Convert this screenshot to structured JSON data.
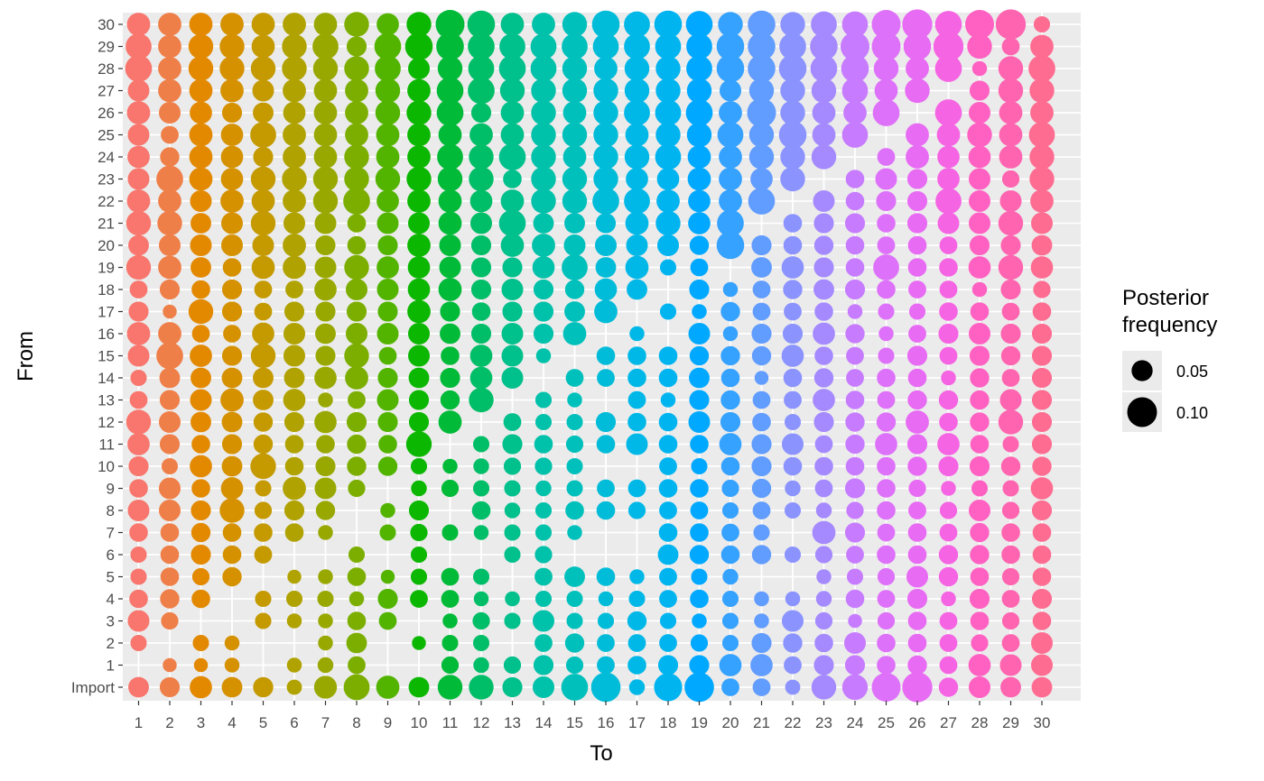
{
  "chart_data": {
    "type": "scatter",
    "encoding": "bubble grid: point size = posterior frequency; color = To column",
    "xlabel": "To",
    "ylabel": "From",
    "x_categories": [
      "1",
      "2",
      "3",
      "4",
      "5",
      "6",
      "7",
      "8",
      "9",
      "10",
      "11",
      "12",
      "13",
      "14",
      "15",
      "16",
      "17",
      "18",
      "19",
      "20",
      "21",
      "22",
      "23",
      "24",
      "25",
      "26",
      "27",
      "28",
      "29",
      "30"
    ],
    "y_categories": [
      "Import",
      "1",
      "2",
      "3",
      "4",
      "5",
      "6",
      "7",
      "8",
      "9",
      "10",
      "11",
      "12",
      "13",
      "14",
      "15",
      "16",
      "17",
      "18",
      "19",
      "20",
      "21",
      "22",
      "23",
      "24",
      "25",
      "26",
      "27",
      "28",
      "29",
      "30"
    ],
    "legend": {
      "title_line1": "Posterior",
      "title_line2": "frequency",
      "placement": "right",
      "entries": [
        {
          "label": "0.05",
          "value": 0.05
        },
        {
          "label": "0.10",
          "value": 0.1
        }
      ]
    },
    "column_colors": [
      "#F8766D",
      "#EF7F48",
      "#E38900",
      "#D59100",
      "#C49A00",
      "#B0A200",
      "#99A800",
      "#7CAE00",
      "#53B400",
      "#0CB702",
      "#00BA38",
      "#00BE67",
      "#00C08B",
      "#00C1A9",
      "#00C0BC",
      "#00BCD8",
      "#00B8E7",
      "#00B4F0",
      "#00A9FF",
      "#35A2FF",
      "#619CFF",
      "#8B93FF",
      "#A58AFF",
      "#C77CFF",
      "#DE71F9",
      "#E76BF3",
      "#F564E3",
      "#FF61C3",
      "#FF64B0",
      "#FF6C91"
    ],
    "size_scale_reference": {
      "0.05": 10.5,
      "0.10": 16.5
    },
    "rows": [
      {
        "from": "Import",
        "values": [
          0.048,
          0.045,
          0.056,
          0.048,
          0.046,
          0.026,
          0.059,
          0.076,
          0.061,
          0.048,
          0.069,
          0.069,
          0.045,
          0.053,
          0.081,
          0.098,
          0.028,
          0.089,
          0.098,
          0.036,
          0.036,
          0.026,
          0.069,
          0.074,
          0.094,
          0.102,
          0.042,
          0.053,
          0.048,
          0.048
        ]
      },
      {
        "from": "1",
        "values": [
          0,
          0.022,
          0.022,
          0.025,
          0,
          0.025,
          0.028,
          0.036,
          0,
          0,
          0.034,
          0.028,
          0.034,
          0.045,
          0.034,
          0.036,
          0.039,
          0.045,
          0.045,
          0.056,
          0.056,
          0.036,
          0.045,
          0.045,
          0.039,
          0.042,
          0.036,
          0.056,
          0.053,
          0.053
        ]
      },
      {
        "from": "2",
        "values": [
          0.03,
          0,
          0.03,
          0.025,
          0,
          0,
          0.025,
          0.048,
          0,
          0.022,
          0.03,
          0.03,
          0,
          0.036,
          0.042,
          0.036,
          0.036,
          0.036,
          0.034,
          0.03,
          0.045,
          0.042,
          0.039,
          0.053,
          0.039,
          0.039,
          0.036,
          0.034,
          0.036,
          0.053
        ]
      },
      {
        "from": "3",
        "values": [
          0.053,
          0.034,
          0,
          0,
          0.03,
          0.025,
          0.025,
          0.039,
          0.036,
          0,
          0.025,
          0.034,
          0.03,
          0.053,
          0.03,
          0.03,
          0.042,
          0.03,
          0.025,
          0.03,
          0.025,
          0.053,
          0.034,
          0.022,
          0.034,
          0.039,
          0.036,
          0.039,
          0.034,
          0.039
        ]
      },
      {
        "from": "4",
        "values": [
          0.039,
          0.042,
          0.039,
          0,
          0.03,
          0.03,
          0.03,
          0.025,
          0.045,
          0.036,
          0.036,
          0.025,
          0.025,
          0.03,
          0.03,
          0.025,
          0.03,
          0.036,
          0.039,
          0.03,
          0.025,
          0.025,
          0.028,
          0.039,
          0.036,
          0.045,
          0.025,
          0.045,
          0.036,
          0.045
        ]
      },
      {
        "from": "5",
        "values": [
          0.03,
          0.039,
          0.034,
          0.042,
          0,
          0.022,
          0.025,
          0.039,
          0.022,
          0.03,
          0.036,
          0.03,
          0,
          0.036,
          0.048,
          0.039,
          0.025,
          0.036,
          0.03,
          0.028,
          0,
          0,
          0.025,
          0.03,
          0.034,
          0.053,
          0.042,
          0.039,
          0.034,
          0.039
        ]
      },
      {
        "from": "6",
        "values": [
          0.03,
          0.039,
          0.045,
          0.039,
          0.036,
          0,
          0,
          0.03,
          0,
          0.03,
          0,
          0,
          0.03,
          0.034,
          0,
          0,
          0,
          0.048,
          0.042,
          0.039,
          0.042,
          0.03,
          0.034,
          0.036,
          0.039,
          0.039,
          0.042,
          0.042,
          0.039,
          0.039
        ]
      },
      {
        "from": "7",
        "values": [
          0.039,
          0.039,
          0.042,
          0.039,
          0.039,
          0.039,
          0.025,
          0,
          0.03,
          0.034,
          0.03,
          0.025,
          0.03,
          0.03,
          0.025,
          0,
          0,
          0.039,
          0.039,
          0.036,
          0.03,
          0,
          0.061,
          0.045,
          0.036,
          0.039,
          0.036,
          0.042,
          0.039,
          0.039
        ]
      },
      {
        "from": "8",
        "values": [
          0.053,
          0.053,
          0.045,
          0.069,
          0.034,
          0.045,
          0.042,
          0,
          0.025,
          0.045,
          0,
          0.039,
          0.028,
          0.03,
          0.039,
          0.039,
          0.034,
          0.036,
          0.036,
          0.03,
          0.036,
          0.03,
          0.028,
          0.034,
          0.039,
          0.036,
          0.034,
          0.053,
          0.034,
          0.045
        ]
      },
      {
        "from": "9",
        "values": [
          0.039,
          0.053,
          0.039,
          0.056,
          0.03,
          0.061,
          0.053,
          0.034,
          0,
          0.028,
          0.034,
          0.03,
          0.03,
          0.028,
          0.03,
          0.036,
          0.036,
          0.039,
          0.039,
          0.034,
          0.042,
          0.028,
          0.036,
          0.045,
          0.039,
          0.034,
          0.025,
          0.03,
          0.03,
          0.056
        ]
      },
      {
        "from": "10",
        "values": [
          0.045,
          0.03,
          0.056,
          0.048,
          0.074,
          0.039,
          0.045,
          0.042,
          0.042,
          0.03,
          0.025,
          0.028,
          0.034,
          0.034,
          0.03,
          0,
          0,
          0.036,
          0.03,
          0.039,
          0.045,
          0.039,
          0.039,
          0.039,
          0.039,
          0.042,
          0.045,
          0.045,
          0.042,
          0.042
        ]
      },
      {
        "from": "11",
        "values": [
          0.056,
          0.045,
          0.039,
          0.045,
          0.042,
          0.039,
          0.039,
          0.042,
          0.039,
          0.074,
          0,
          0.03,
          0.045,
          0.039,
          0.034,
          0.039,
          0.053,
          0.039,
          0.039,
          0.056,
          0.045,
          0.053,
          0.036,
          0.042,
          0.056,
          0.045,
          0.056,
          0.039,
          0.03,
          0.045
        ]
      },
      {
        "from": "12",
        "values": [
          0.069,
          0.053,
          0.048,
          0.048,
          0.042,
          0.045,
          0.056,
          0.045,
          0.045,
          0.045,
          0.061,
          0,
          0.036,
          0.03,
          0.03,
          0.045,
          0.039,
          0.039,
          0.053,
          0.045,
          0.039,
          0.03,
          0.045,
          0.042,
          0.042,
          0.061,
          0.039,
          0.042,
          0.069,
          0.045
        ]
      },
      {
        "from": "13",
        "values": [
          0.036,
          0.045,
          0.053,
          0.061,
          0.048,
          0.056,
          0.025,
          0.036,
          0.053,
          0.045,
          0.042,
          0.069,
          0,
          0.03,
          0.025,
          0,
          0.036,
          0.025,
          0.045,
          0.042,
          0.036,
          0.036,
          0.056,
          0.039,
          0.036,
          0.042,
          0.042,
          0.042,
          0.053,
          0.045
        ]
      },
      {
        "from": "14",
        "values": [
          0.03,
          0.048,
          0.048,
          0.048,
          0.048,
          0.048,
          0.056,
          0.061,
          0.045,
          0.048,
          0.045,
          0.056,
          0.053,
          0,
          0.036,
          0.036,
          0.039,
          0.039,
          0.048,
          0.039,
          0.022,
          0.039,
          0.042,
          0.036,
          0.039,
          0.039,
          0.025,
          0.042,
          0.036,
          0.045
        ]
      },
      {
        "from": "15",
        "values": [
          0.053,
          0.081,
          0.056,
          0.045,
          0.069,
          0.053,
          0.045,
          0.069,
          0.036,
          0.053,
          0.039,
          0.056,
          0.053,
          0.025,
          0,
          0.039,
          0.039,
          0.039,
          0.042,
          0.042,
          0.042,
          0.056,
          0.039,
          0.036,
          0.03,
          0.045,
          0.036,
          0.045,
          0.042,
          0.045
        ]
      },
      {
        "from": "16",
        "values": [
          0.061,
          0.061,
          0.036,
          0.036,
          0.056,
          0.053,
          0.048,
          0.053,
          0.053,
          0.053,
          0.048,
          0.045,
          0.053,
          0.045,
          0.061,
          0,
          0.025,
          0,
          0.053,
          0.025,
          0.045,
          0.045,
          0.056,
          0.042,
          0.025,
          0.036,
          0.045,
          0.053,
          0.045,
          0.045
        ]
      },
      {
        "from": "17",
        "values": [
          0.045,
          0.022,
          0.069,
          0.045,
          0.036,
          0.045,
          0.045,
          0.045,
          0.045,
          0.061,
          0.045,
          0.039,
          0.045,
          0.045,
          0.048,
          0.061,
          0,
          0.03,
          0.025,
          0.042,
          0.036,
          0.036,
          0.039,
          0.025,
          0.03,
          0.03,
          0.039,
          0.039,
          0.036,
          0.039
        ]
      },
      {
        "from": "18",
        "values": [
          0.036,
          0.045,
          0.039,
          0.045,
          0.036,
          0.036,
          0.056,
          0.053,
          0.053,
          0.056,
          0.061,
          0.045,
          0.053,
          0.045,
          0.042,
          0.056,
          0.048,
          0,
          0.045,
          0.025,
          0.036,
          0.042,
          0.048,
          0.045,
          0.039,
          0.036,
          0.036,
          0.025,
          0.045,
          0.034
        ]
      },
      {
        "from": "19",
        "values": [
          0.069,
          0.061,
          0.048,
          0.039,
          0.061,
          0.061,
          0.053,
          0.069,
          0.056,
          0.056,
          0.053,
          0.045,
          0.045,
          0.056,
          0.076,
          0.048,
          0.061,
          0.03,
          0.036,
          0,
          0.048,
          0.056,
          0.045,
          0.039,
          0.076,
          0.039,
          0.039,
          0.056,
          0.069,
          0.056
        ]
      },
      {
        "from": "20",
        "values": [
          0.048,
          0.053,
          0.053,
          0.053,
          0.053,
          0.061,
          0.045,
          0.039,
          0.045,
          0.061,
          0.053,
          0.045,
          0.061,
          0.061,
          0.053,
          0.053,
          0.053,
          0.053,
          0.042,
          0.086,
          0.045,
          0.039,
          0.042,
          0.039,
          0.036,
          0.039,
          0.036,
          0.045,
          0.045,
          0.048
        ]
      },
      {
        "from": "21",
        "values": [
          0.069,
          0.069,
          0.048,
          0.053,
          0.069,
          0.053,
          0.053,
          0.039,
          0.053,
          0.053,
          0.061,
          0.053,
          0.081,
          0.048,
          0.048,
          0.045,
          0.061,
          0.069,
          0.056,
          0.081,
          0,
          0.039,
          0.045,
          0.045,
          0.039,
          0.045,
          0.053,
          0.053,
          0.069,
          0.053
        ]
      },
      {
        "from": "22",
        "values": [
          0.061,
          0.061,
          0.053,
          0.061,
          0.061,
          0.061,
          0.069,
          0.081,
          0.056,
          0.061,
          0.061,
          0.056,
          0.061,
          0.069,
          0.069,
          0.081,
          0.076,
          0.061,
          0.056,
          0.061,
          0.081,
          0,
          0.053,
          0.039,
          0.045,
          0.045,
          0.076,
          0.053,
          0.053,
          0.061
        ]
      },
      {
        "from": "23",
        "values": [
          0.053,
          0.081,
          0.061,
          0.056,
          0.069,
          0.069,
          0.069,
          0.069,
          0.069,
          0.069,
          0.069,
          0.069,
          0.039,
          0.069,
          0.069,
          0.069,
          0.056,
          0.056,
          0.061,
          0.061,
          0.056,
          0.069,
          0,
          0.039,
          0.053,
          0.045,
          0.056,
          0.053,
          0.034,
          0.069
        ]
      },
      {
        "from": "24",
        "values": [
          0.056,
          0.042,
          0.061,
          0.056,
          0.045,
          0.061,
          0.061,
          0.069,
          0.061,
          0.061,
          0.076,
          0.069,
          0.081,
          0.069,
          0.061,
          0.069,
          0.069,
          0.076,
          0.061,
          0.061,
          0.069,
          0.069,
          0.069,
          0,
          0.036,
          0.061,
          0.056,
          0.056,
          0.061,
          0.069
        ]
      },
      {
        "from": "25",
        "values": [
          0.053,
          0.036,
          0.061,
          0.056,
          0.076,
          0.061,
          0.061,
          0.061,
          0.061,
          0.061,
          0.061,
          0.061,
          0.061,
          0.069,
          0.069,
          0.069,
          0.061,
          0.069,
          0.069,
          0.076,
          0.069,
          0.086,
          0.061,
          0.076,
          0,
          0.061,
          0.061,
          0.069,
          0.061,
          0.076
        ]
      },
      {
        "from": "26",
        "values": [
          0.061,
          0.053,
          0.056,
          0.045,
          0.048,
          0.056,
          0.061,
          0.061,
          0.069,
          0.069,
          0.081,
          0.045,
          0.061,
          0.069,
          0.061,
          0.069,
          0.076,
          0.076,
          0.081,
          0.061,
          0.094,
          0.069,
          0.061,
          0.061,
          0.081,
          0,
          0.081,
          0.053,
          0.061,
          0.061
        ]
      },
      {
        "from": "27",
        "values": [
          0.053,
          0.061,
          0.061,
          0.061,
          0.053,
          0.061,
          0.061,
          0.061,
          0.069,
          0.061,
          0.081,
          0.081,
          0.069,
          0.069,
          0.069,
          0.069,
          0.069,
          0.069,
          0.069,
          0.053,
          0.069,
          0.069,
          0.069,
          0.076,
          0.061,
          0.069,
          0,
          0.045,
          0.069,
          0.069
        ]
      },
      {
        "from": "28",
        "values": [
          0.081,
          0.061,
          0.069,
          0.069,
          0.069,
          0.069,
          0.069,
          0.069,
          0.076,
          0.053,
          0.069,
          0.076,
          0.081,
          0.076,
          0.069,
          0.061,
          0.069,
          0.069,
          0.076,
          0.086,
          0.086,
          0.086,
          0.081,
          0.086,
          0.069,
          0.061,
          0.081,
          0.025,
          0.069,
          0.081
        ]
      },
      {
        "from": "29",
        "values": [
          0.076,
          0.061,
          0.069,
          0.069,
          0.061,
          0.069,
          0.076,
          0.045,
          0.081,
          0.086,
          0.086,
          0.081,
          0.076,
          0.076,
          0.076,
          0.076,
          0.076,
          0.076,
          0.076,
          0.086,
          0.086,
          0.081,
          0.086,
          0.094,
          0.094,
          0.086,
          0.102,
          0.069,
          0.036,
          0.061
        ]
      },
      {
        "from": "30",
        "values": [
          0.061,
          0.061,
          0.061,
          0.061,
          0.061,
          0.061,
          0.061,
          0.069,
          0.056,
          0.069,
          0.094,
          0.086,
          0.061,
          0.061,
          0.069,
          0.086,
          0.076,
          0.086,
          0.081,
          0.069,
          0.086,
          0.069,
          0.076,
          0.076,
          0.094,
          0.102,
          0.081,
          0.094,
          0.102,
          0.03
        ]
      }
    ]
  }
}
